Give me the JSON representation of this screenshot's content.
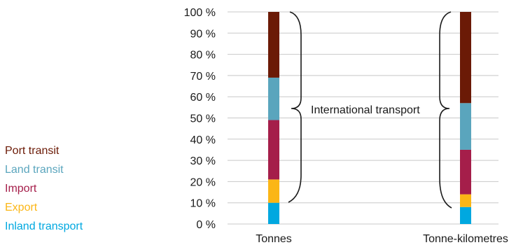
{
  "chart_data": {
    "type": "bar",
    "stacked": true,
    "categories": [
      "Tonnes",
      "Tonne-kilometres"
    ],
    "series": [
      {
        "name": "Inland transport",
        "values": [
          10,
          8
        ],
        "color": "#00a8e0"
      },
      {
        "name": "Export",
        "values": [
          11,
          6
        ],
        "color": "#fbb616"
      },
      {
        "name": "Import",
        "values": [
          28,
          21
        ],
        "color": "#a51e4a"
      },
      {
        "name": "Land transit",
        "values": [
          20,
          22
        ],
        "color": "#5aa5bd"
      },
      {
        "name": "Port transit",
        "values": [
          31,
          43
        ],
        "color": "#6b1a06"
      }
    ],
    "yticks": [
      "0 %",
      "10 %",
      "20 %",
      "30 %",
      "40 %",
      "50 %",
      "60 %",
      "70 %",
      "80 %",
      "90 %",
      "100 %"
    ],
    "ylim": [
      0,
      100
    ],
    "grid": true,
    "legend": "left",
    "annotation": "International transport"
  }
}
